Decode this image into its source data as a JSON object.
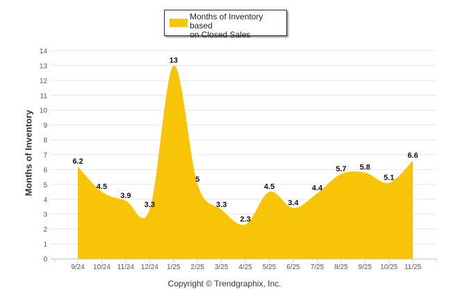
{
  "chart_data": {
    "type": "area",
    "title": "",
    "xlabel": "",
    "ylabel": "Months of Inventory",
    "ylim": [
      0,
      14
    ],
    "yticks": [
      "0",
      "1",
      "2",
      "3",
      "4",
      "5",
      "6",
      "7",
      "8",
      "9",
      "10",
      "11",
      "12",
      "13",
      "14"
    ],
    "categories": [
      "9/24",
      "10/24",
      "11/24",
      "12/24",
      "1/25",
      "2/25",
      "3/25",
      "4/25",
      "5/25",
      "6/25",
      "7/25",
      "8/25",
      "9/25",
      "10/25",
      "11/25"
    ],
    "series": [
      {
        "name": "Months of Inventory based on Closed Sales",
        "values": [
          6.2,
          4.5,
          3.9,
          3.3,
          13,
          5,
          3.3,
          2.3,
          4.5,
          3.4,
          4.4,
          5.7,
          5.8,
          5.1,
          6.6
        ],
        "labels": [
          "6.2",
          "4.5",
          "3.9",
          "3.3",
          "13",
          "5",
          "3.3",
          "2.3",
          "4.5",
          "3.4",
          "4.4",
          "5.7",
          "5.8",
          "5.1",
          "6.6"
        ],
        "color": "#f7c408"
      }
    ],
    "legend": {
      "position": "top-center",
      "lines": [
        "Months of Inventory based",
        "on Closed Sales"
      ]
    },
    "grid": true
  },
  "footer": {
    "copyright": "Copyright © Trendgraphix, Inc."
  }
}
